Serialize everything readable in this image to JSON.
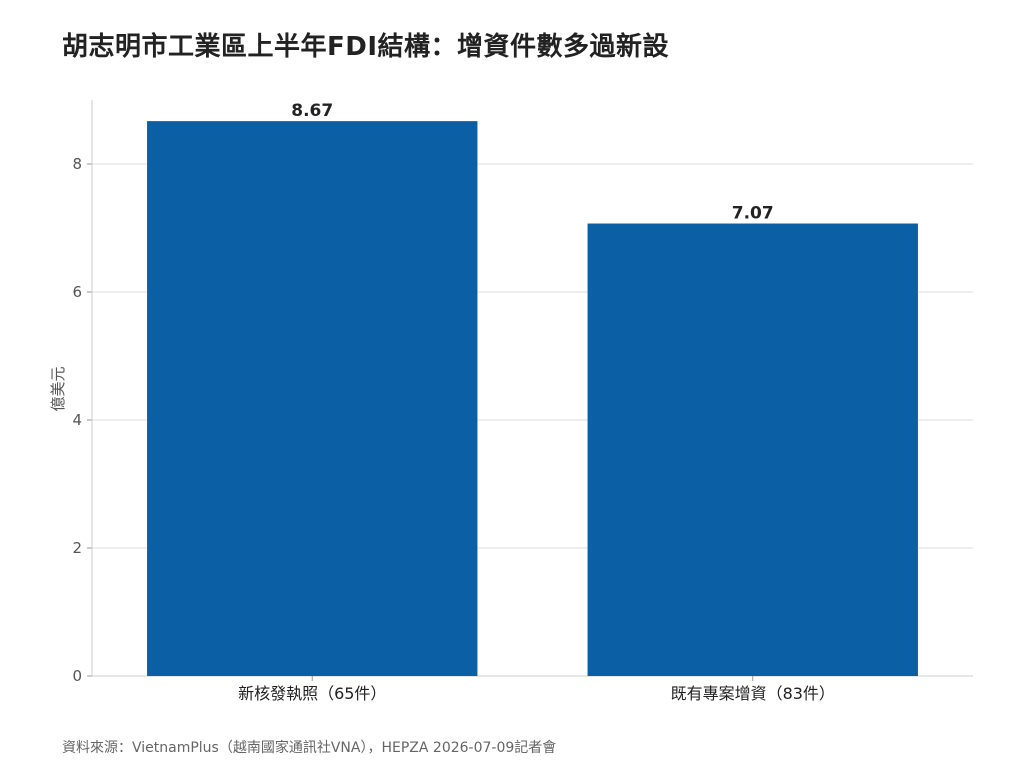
{
  "chart_data": {
    "type": "bar",
    "title": "胡志明市工業區上半年FDI結構：增資件數多過新設",
    "ylabel": "億美元",
    "xlabel": "",
    "categories": [
      "新核發執照（65件）",
      "既有專案增資（83件）"
    ],
    "values": [
      8.67,
      7.07
    ],
    "value_labels": [
      "8.67",
      "7.07"
    ],
    "ylim": [
      0,
      9
    ],
    "yticks": [
      0,
      2,
      4,
      6,
      8
    ],
    "grid": true,
    "bar_color": "#0b5fa5",
    "source": "資料來源：VietnamPlus（越南國家通訊社VNA），HEPZA 2026-07-09記者會"
  }
}
